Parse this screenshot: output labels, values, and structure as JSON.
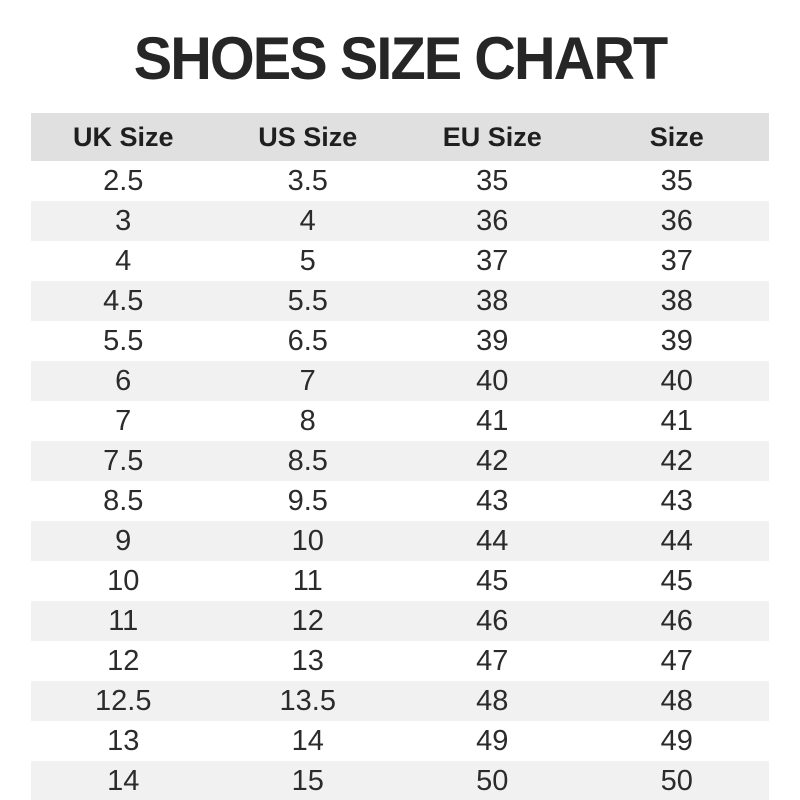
{
  "page": {
    "title": "SHOES SIZE CHART"
  },
  "table": {
    "headers": [
      "UK Size",
      "US Size",
      "EU Size",
      "Size"
    ],
    "rows": [
      [
        "2.5",
        "3.5",
        "35",
        "35"
      ],
      [
        "3",
        "4",
        "36",
        "36"
      ],
      [
        "4",
        "5",
        "37",
        "37"
      ],
      [
        "4.5",
        "5.5",
        "38",
        "38"
      ],
      [
        "5.5",
        "6.5",
        "39",
        "39"
      ],
      [
        "6",
        "7",
        "40",
        "40"
      ],
      [
        "7",
        "8",
        "41",
        "41"
      ],
      [
        "7.5",
        "8.5",
        "42",
        "42"
      ],
      [
        "8.5",
        "9.5",
        "43",
        "43"
      ],
      [
        "9",
        "10",
        "44",
        "44"
      ],
      [
        "10",
        "11",
        "45",
        "45"
      ],
      [
        "11",
        "12",
        "46",
        "46"
      ],
      [
        "12",
        "13",
        "47",
        "47"
      ],
      [
        "12.5",
        "13.5",
        "48",
        "48"
      ],
      [
        "13",
        "14",
        "49",
        "49"
      ],
      [
        "14",
        "15",
        "50",
        "50"
      ]
    ]
  },
  "colors": {
    "title_text": "#262626",
    "header_bg": "#e0e0e0",
    "stripe_bg": "#f1f1f1",
    "row_bg": "#ffffff",
    "cell_text": "#2b2b2b"
  },
  "chart_data": {
    "type": "table",
    "title": "SHOES SIZE CHART",
    "columns": [
      "UK Size",
      "US Size",
      "EU Size",
      "Size"
    ],
    "rows": [
      [
        "2.5",
        "3.5",
        "35",
        "35"
      ],
      [
        "3",
        "4",
        "36",
        "36"
      ],
      [
        "4",
        "5",
        "37",
        "37"
      ],
      [
        "4.5",
        "5.5",
        "38",
        "38"
      ],
      [
        "5.5",
        "6.5",
        "39",
        "39"
      ],
      [
        "6",
        "7",
        "40",
        "40"
      ],
      [
        "7",
        "8",
        "41",
        "41"
      ],
      [
        "7.5",
        "8.5",
        "42",
        "42"
      ],
      [
        "8.5",
        "9.5",
        "43",
        "43"
      ],
      [
        "9",
        "10",
        "44",
        "44"
      ],
      [
        "10",
        "11",
        "45",
        "45"
      ],
      [
        "11",
        "12",
        "46",
        "46"
      ],
      [
        "12",
        "13",
        "47",
        "47"
      ],
      [
        "12.5",
        "13.5",
        "48",
        "48"
      ],
      [
        "13",
        "14",
        "49",
        "49"
      ],
      [
        "14",
        "15",
        "50",
        "50"
      ]
    ],
    "layout": {
      "header_background": "#e0e0e0",
      "alternating_row_background": "#f1f1f1",
      "grid": false,
      "column_alignment": "center"
    }
  }
}
